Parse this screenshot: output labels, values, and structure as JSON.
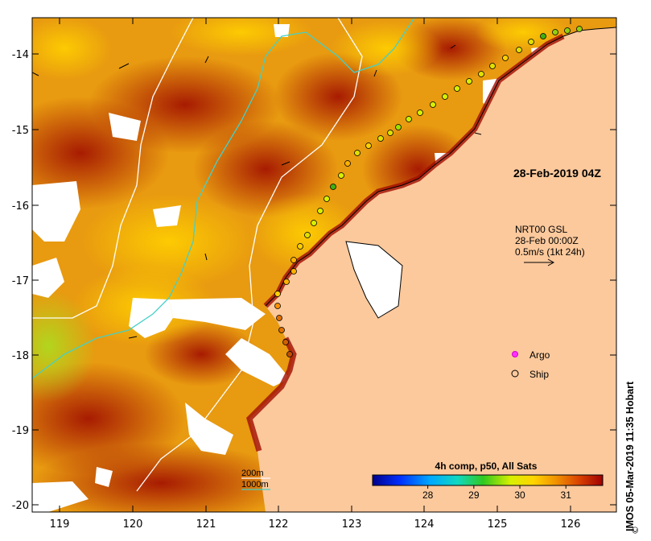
{
  "map": {
    "lon_ticks": [
      "119",
      "120",
      "121",
      "122",
      "123",
      "124",
      "125",
      "126"
    ],
    "lat_ticks": [
      "-14",
      "-15",
      "-16",
      "-17",
      "-18",
      "-19",
      "-20"
    ],
    "timestamp_label": "28-Feb-2019 04Z",
    "current_legend": {
      "line1": "NRT00 GSL",
      "line2": "28-Feb 00:00Z",
      "line3": "0.5m/s (1kt 24h)"
    },
    "symbol_legend": {
      "argo": "Argo",
      "ship": "Ship"
    },
    "isobath_legend": {
      "shallow": "200m",
      "deep": "1000m"
    },
    "colorbar": {
      "title": "4h comp, p50, All Sats",
      "ticks": [
        "28",
        "29",
        "30",
        "31"
      ],
      "range": [
        27,
        32
      ]
    },
    "credit": "IMOS 05-Mar-2019 11:35 Hobart",
    "copyright_mark": "©",
    "colors": {
      "land": "#fcc99c",
      "hot": "#a00d00",
      "ship_track": "#90d010",
      "isobath_200": "#ffffff",
      "isobath_1000": "#44d0c8"
    }
  }
}
